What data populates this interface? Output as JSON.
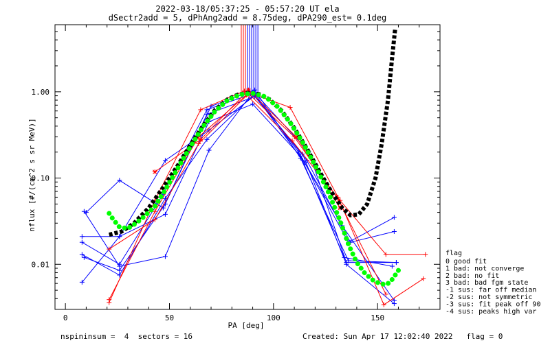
{
  "header": {
    "title": "2022-03-18/05:37:25 - 05:57:20 UT ela",
    "subtitle": "dSectr2add = 5, dPhAng2add = 8.75deg, dPA290_est=   0.1deg"
  },
  "footer": {
    "left": "nspininsum =  4  sectors = 16",
    "right": "Created: Sun Apr 17 12:02:40 2022   flag = 0"
  },
  "flag_legend": {
    "title": "flag",
    "items": [
      " 0 good fit",
      " 1 bad: not converge",
      " 2 bad: no fit",
      " 3 bad: bad fgm state",
      "-1 sus: far off median",
      "-2 sus: not symmetric",
      "-3 sus: fit peak off 90",
      "-4 sus: peaks high var"
    ]
  },
  "colors": {
    "red": "#ff0000",
    "blue": "#0000ff",
    "green": "#00ff00",
    "black": "#000000"
  },
  "chart_data": {
    "type": "line",
    "title": "2022-03-18/05:37:25 - 05:57:20 UT ela",
    "xlabel": "PA [deg]",
    "ylabel": "nflux [#/(cm^2 s sr MeV)]",
    "xlim": [
      -5,
      180
    ],
    "ylim": [
      0.003,
      6
    ],
    "yscale": "log",
    "xticks": [
      0,
      50,
      100,
      150
    ],
    "xtick_labels": [
      "0",
      "50",
      "100",
      "150"
    ],
    "yticks": [
      0.01,
      0.1,
      1
    ],
    "ytick_labels": [
      "0.01",
      "0.10",
      "1.00"
    ],
    "vertical_lines": [
      {
        "x": 84.5,
        "color": "red"
      },
      {
        "x": 85.5,
        "color": "red"
      },
      {
        "x": 86.5,
        "color": "red"
      },
      {
        "x": 87.5,
        "color": "blue"
      },
      {
        "x": 88.5,
        "color": "blue"
      },
      {
        "x": 89.5,
        "color": "blue"
      },
      {
        "x": 90.5,
        "color": "blue"
      },
      {
        "x": 91.5,
        "color": "blue"
      },
      {
        "x": 92.5,
        "color": "blue"
      }
    ],
    "series": [
      {
        "color": "blue",
        "marker": "+",
        "points": [
          [
            8,
            0.013
          ],
          [
            26,
            0.0075
          ],
          [
            48,
            0.058
          ],
          [
            68,
            0.28
          ],
          [
            91,
            0.95
          ],
          [
            112,
            0.2
          ],
          [
            133,
            0.028
          ],
          [
            158,
            0.0038
          ]
        ]
      },
      {
        "color": "blue",
        "marker": "+",
        "points": [
          [
            9,
            0.012
          ],
          [
            26,
            0.0085
          ],
          [
            48,
            0.05
          ],
          [
            70,
            0.68
          ],
          [
            91,
            1.05
          ],
          [
            113,
            0.17
          ],
          [
            136,
            0.011
          ],
          [
            159,
            0.0105
          ]
        ]
      },
      {
        "color": "blue",
        "marker": "+",
        "points": [
          [
            8,
            0.021
          ],
          [
            26,
            0.021
          ],
          [
            48,
            0.16
          ],
          [
            69,
            0.36
          ],
          [
            91,
            0.9
          ],
          [
            116,
            0.16
          ],
          [
            137,
            0.018
          ],
          [
            158,
            0.024
          ]
        ]
      },
      {
        "color": "blue",
        "marker": "+",
        "points": [
          [
            8,
            0.018
          ],
          [
            26,
            0.01
          ],
          [
            47,
            0.065
          ],
          [
            68,
            0.62
          ],
          [
            91,
            0.97
          ],
          [
            117,
            0.2
          ],
          [
            135,
            0.0105
          ],
          [
            159,
            0.0105
          ]
        ]
      },
      {
        "color": "blue",
        "marker": "+",
        "points": [
          [
            8,
            0.0062
          ],
          [
            26,
            0.021
          ],
          [
            48,
            0.038
          ],
          [
            69,
            0.45
          ],
          [
            90,
            0.72
          ],
          [
            113,
            0.18
          ],
          [
            134,
            0.012
          ],
          [
            157,
            0.0095
          ]
        ]
      },
      {
        "color": "blue",
        "marker": "+",
        "points": [
          [
            9,
            0.041
          ],
          [
            26,
            0.0095
          ],
          [
            48,
            0.0123
          ],
          [
            69,
            0.21
          ],
          [
            90,
            0.98
          ],
          [
            115,
            0.15
          ],
          [
            136,
            0.018
          ],
          [
            158,
            0.035
          ]
        ]
      },
      {
        "color": "blue",
        "marker": "+",
        "points": [
          [
            10,
            0.04
          ],
          [
            26,
            0.094
          ],
          [
            47,
            0.045
          ],
          [
            68,
            0.55
          ],
          [
            91,
            0.88
          ],
          [
            114,
            0.19
          ],
          [
            135,
            0.01
          ],
          [
            158,
            0.0035
          ]
        ]
      },
      {
        "color": "red",
        "marker": "+",
        "points": [
          [
            21,
            0.0036
          ],
          [
            43,
            0.055
          ],
          [
            65,
            0.62
          ],
          [
            86,
            1.02
          ],
          [
            108,
            0.66
          ],
          [
            131,
            0.06
          ],
          [
            153,
            0.0034
          ],
          [
            172,
            0.0068
          ]
        ]
      },
      {
        "color": "red",
        "marker": "+",
        "points": [
          [
            21,
            0.0039
          ],
          [
            43,
            0.041
          ],
          [
            64,
            0.3
          ],
          [
            87,
            0.92
          ],
          [
            109,
            0.27
          ],
          [
            132,
            0.055
          ],
          [
            154,
            0.013
          ],
          [
            173,
            0.013
          ]
        ]
      },
      {
        "color": "red",
        "marker": "+",
        "points": [
          [
            21,
            0.015
          ],
          [
            43,
            0.033
          ],
          [
            64,
            0.25
          ],
          [
            88,
            0.95
          ],
          [
            110,
            0.3
          ],
          [
            131,
            0.057
          ],
          [
            154,
            0.0045
          ]
        ]
      },
      {
        "color": "red",
        "marker": "*",
        "points": [
          [
            43,
            0.118
          ],
          [
            65,
            0.28
          ],
          [
            88,
            1.05
          ],
          [
            111,
            0.3
          ],
          [
            132,
            0.045
          ]
        ]
      }
    ],
    "fits": [
      {
        "color": "black",
        "points": [
          [
            21,
            0.022
          ],
          [
            27,
            0.024
          ],
          [
            33,
            0.03
          ],
          [
            40,
            0.045
          ],
          [
            47,
            0.078
          ],
          [
            54,
            0.14
          ],
          [
            60,
            0.24
          ],
          [
            66,
            0.4
          ],
          [
            72,
            0.62
          ],
          [
            78,
            0.82
          ],
          [
            83,
            0.93
          ],
          [
            88,
            0.97
          ],
          [
            93,
            0.94
          ],
          [
            98,
            0.82
          ],
          [
            104,
            0.6
          ],
          [
            110,
            0.38
          ],
          [
            116,
            0.22
          ],
          [
            122,
            0.12
          ],
          [
            128,
            0.068
          ],
          [
            133,
            0.045
          ],
          [
            137,
            0.037
          ],
          [
            141,
            0.038
          ],
          [
            145,
            0.05
          ],
          [
            149,
            0.1
          ],
          [
            152,
            0.25
          ],
          [
            155,
            0.8
          ],
          [
            157,
            2.5
          ],
          [
            158.5,
            5.5
          ]
        ]
      },
      {
        "color": "green",
        "points": [
          [
            21,
            0.039
          ],
          [
            23,
            0.033
          ],
          [
            26,
            0.027
          ],
          [
            30,
            0.026
          ],
          [
            34,
            0.03
          ],
          [
            38,
            0.036
          ],
          [
            43,
            0.047
          ],
          [
            48,
            0.073
          ],
          [
            54,
            0.13
          ],
          [
            60,
            0.23
          ],
          [
            66,
            0.39
          ],
          [
            72,
            0.6
          ],
          [
            78,
            0.8
          ],
          [
            84,
            0.93
          ],
          [
            90,
            0.96
          ],
          [
            96,
            0.88
          ],
          [
            102,
            0.67
          ],
          [
            108,
            0.44
          ],
          [
            114,
            0.26
          ],
          [
            120,
            0.14
          ],
          [
            126,
            0.072
          ],
          [
            132,
            0.032
          ],
          [
            136,
            0.017
          ],
          [
            140,
            0.0105
          ],
          [
            144,
            0.0078
          ],
          [
            148,
            0.0065
          ],
          [
            151,
            0.006
          ],
          [
            154,
            0.0058
          ],
          [
            156,
            0.0062
          ],
          [
            158,
            0.0072
          ],
          [
            160,
            0.0085
          ]
        ]
      }
    ]
  }
}
